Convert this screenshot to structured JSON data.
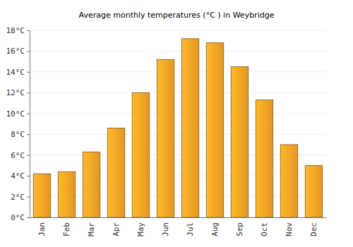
{
  "chart_data": {
    "type": "bar",
    "title": "Average monthly temperatures (°C ) in Weybridge",
    "categories": [
      "Jan",
      "Feb",
      "Mar",
      "Apr",
      "May",
      "Jun",
      "Jul",
      "Aug",
      "Sep",
      "Oct",
      "Nov",
      "Dec"
    ],
    "values": [
      4.2,
      4.4,
      6.3,
      8.6,
      12.0,
      15.2,
      17.2,
      16.8,
      14.5,
      11.3,
      7.0,
      5.0
    ],
    "color": "#ffa726",
    "ylim": [
      0,
      18
    ],
    "yticks": [
      {
        "value": 0,
        "label": "0°C"
      },
      {
        "value": 2,
        "label": "2°C"
      },
      {
        "value": 4,
        "label": "4°C"
      },
      {
        "value": 6,
        "label": "6°C"
      },
      {
        "value": 8,
        "label": "8°C"
      },
      {
        "value": 10,
        "label": "10°C"
      },
      {
        "value": 12,
        "label": "12°C"
      },
      {
        "value": 14,
        "label": "14°C"
      },
      {
        "value": 16,
        "label": "16°C"
      },
      {
        "value": 18,
        "label": "18°C"
      }
    ],
    "grid": true
  }
}
